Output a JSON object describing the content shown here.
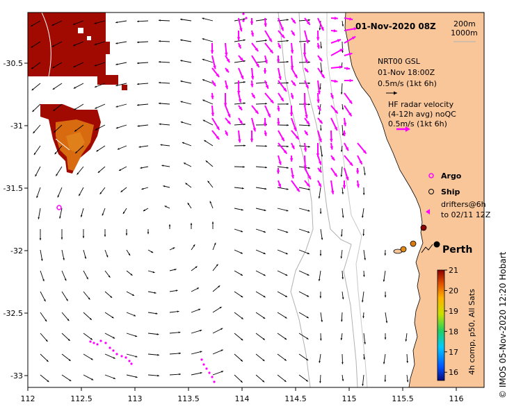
{
  "title": "01-Nov-2020 08Z",
  "depth_contours": [
    "200m",
    "1000m"
  ],
  "model_legend": {
    "title": "NRT00 GSL",
    "time": "01-Nov 18:00Z",
    "scale": "0.5m/s (1kt 6h)"
  },
  "radar_legend": {
    "line1": "HF radar velocity",
    "line2": "(4-12h avg) noQC",
    "scale": "0.5m/s (1kt 6h)"
  },
  "symbols": {
    "argo": "Argo",
    "ship": "Ship",
    "drifters_line1": "drifters@6h",
    "drifters_line2": "to 02/11 12Z"
  },
  "place": "Perth",
  "colorbar": {
    "label": "4h comp, p50, All Sats",
    "ticks": [
      "21",
      "20",
      "19",
      "18",
      "17",
      "16"
    ],
    "min": 15.6,
    "max": 21
  },
  "credit": "© IMOS 05-Nov-2020 12:20 Hobart",
  "axes": {
    "x_ticks": [
      "112",
      "112.5",
      "113",
      "113.5",
      "114",
      "114.5",
      "115",
      "115.5",
      "116"
    ],
    "y_ticks": [
      "-30.5",
      "-31",
      "-31.5",
      "-32",
      "-32.5",
      "-33"
    ]
  },
  "colors": {
    "land": "#f9c69a",
    "radar": "#ff00ff",
    "sst_hot": "#a00a00",
    "sst_warm": "#d86a10"
  }
}
